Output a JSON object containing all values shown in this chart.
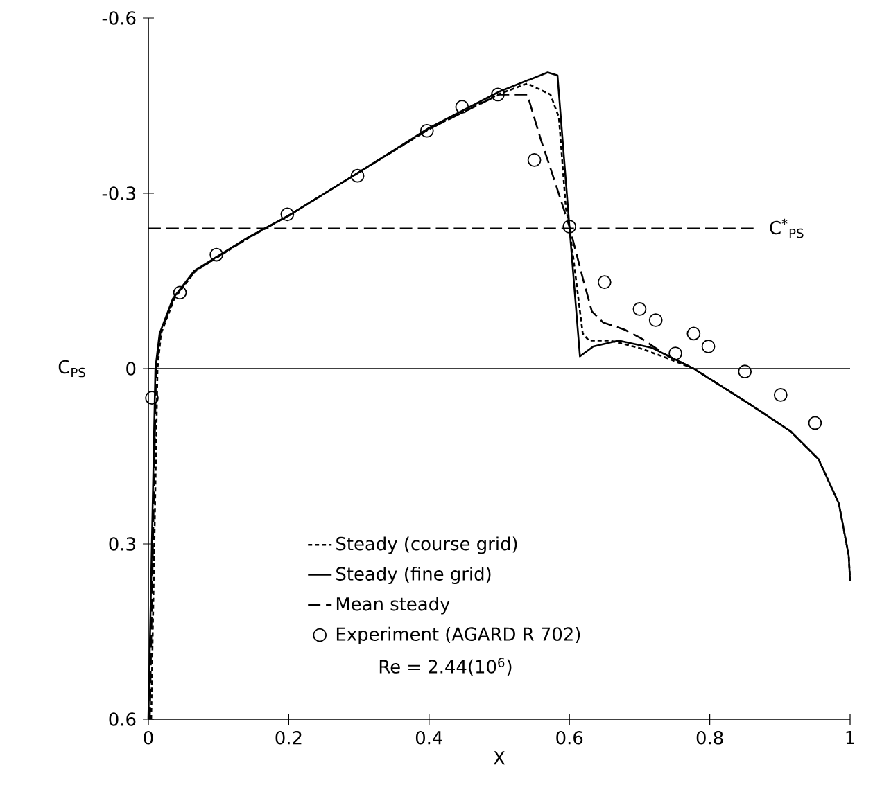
{
  "chart_data": {
    "type": "line",
    "xlabel": "X",
    "ylabel": "C$_{PS}$",
    "xlim": [
      0,
      1
    ],
    "ylim": [
      0.6,
      -0.6
    ],
    "xticks": [
      0,
      0.2,
      0.4,
      0.6,
      0.8,
      1
    ],
    "yticks": [
      -0.6,
      -0.3,
      0,
      0.3,
      0.6
    ],
    "legend": "bottom left",
    "grid": false,
    "series": [
      {
        "name": "Steady (course grid)",
        "color": "#000000",
        "line_style": "dotted",
        "marker": "none",
        "x": [
          0.004,
          0.013,
          0.018,
          0.037,
          0.067,
          0.146,
          0.2,
          0.3,
          0.4,
          0.5,
          0.54,
          0.573,
          0.585,
          0.595,
          0.6,
          0.619,
          0.628,
          0.658,
          0.698,
          0.737,
          0.777,
          0.856,
          0.915,
          0.955,
          0.984,
          0.998,
          1.0
        ],
        "values": [
          0.6,
          0,
          -0.06,
          -0.12,
          -0.167,
          -0.226,
          -0.262,
          -0.336,
          -0.41,
          -0.47,
          -0.488,
          -0.469,
          -0.43,
          -0.274,
          -0.243,
          -0.06,
          -0.048,
          -0.048,
          -0.036,
          -0.019,
          0,
          0.06,
          0.107,
          0.155,
          0.231,
          0.32,
          0.364
        ]
      },
      {
        "name": "Steady (fine grid)",
        "color": "#000000",
        "line_style": "solid",
        "marker": "none",
        "x": [
          0,
          0.01,
          0.016,
          0.035,
          0.065,
          0.144,
          0.2,
          0.3,
          0.4,
          0.5,
          0.569,
          0.583,
          0.6,
          0.615,
          0.634,
          0.67,
          0.717,
          0.777,
          0.856,
          0.915,
          0.955,
          0.984,
          0.998,
          1.0
        ],
        "values": [
          0.6,
          0,
          -0.06,
          -0.12,
          -0.167,
          -0.226,
          -0.262,
          -0.336,
          -0.412,
          -0.474,
          -0.507,
          -0.502,
          -0.243,
          -0.021,
          -0.038,
          -0.048,
          -0.036,
          0,
          0.06,
          0.107,
          0.155,
          0.231,
          0.32,
          0.364
        ]
      },
      {
        "name": "Mean steady",
        "color": "#000000",
        "line_style": "dashed",
        "marker": "none",
        "x": [
          0.002,
          0.011,
          0.017,
          0.036,
          0.066,
          0.145,
          0.2,
          0.3,
          0.4,
          0.5,
          0.54,
          0.559,
          0.579,
          0.6,
          0.619,
          0.632,
          0.648,
          0.678,
          0.702,
          0.737,
          0.777,
          0.856,
          0.915
        ],
        "values": [
          0.6,
          0,
          -0.06,
          -0.12,
          -0.167,
          -0.226,
          -0.262,
          -0.336,
          -0.41,
          -0.469,
          -0.469,
          -0.393,
          -0.321,
          -0.243,
          -0.155,
          -0.098,
          -0.079,
          -0.067,
          -0.052,
          -0.024,
          0,
          0.06,
          0.107
        ]
      },
      {
        "name": "Experiment (AGARD R 702)",
        "type": "scatter",
        "color": "#000000",
        "marker": "circle",
        "x": [
          0.005,
          0.045,
          0.097,
          0.198,
          0.298,
          0.397,
          0.447,
          0.498,
          0.55,
          0.6,
          0.65,
          0.7,
          0.723,
          0.751,
          0.777,
          0.798,
          0.85,
          0.901,
          0.95
        ],
        "values": [
          0.05,
          -0.13,
          -0.195,
          -0.264,
          -0.33,
          -0.407,
          -0.448,
          -0.469,
          -0.357,
          -0.243,
          -0.148,
          -0.102,
          -0.083,
          -0.026,
          -0.06,
          -0.038,
          0.005,
          0.045,
          0.093
        ]
      }
    ],
    "ref_lines": [
      {
        "axis": "y",
        "value": 0,
        "color": "#000000",
        "line_style": "solid"
      },
      {
        "axis": "y",
        "value": -0.24,
        "label": "C$^{*}$$_{PS}$",
        "color": "#000000",
        "line_style": "dashed"
      }
    ],
    "annotations": [
      "Re = 2.44(10$^{6}$)"
    ]
  }
}
